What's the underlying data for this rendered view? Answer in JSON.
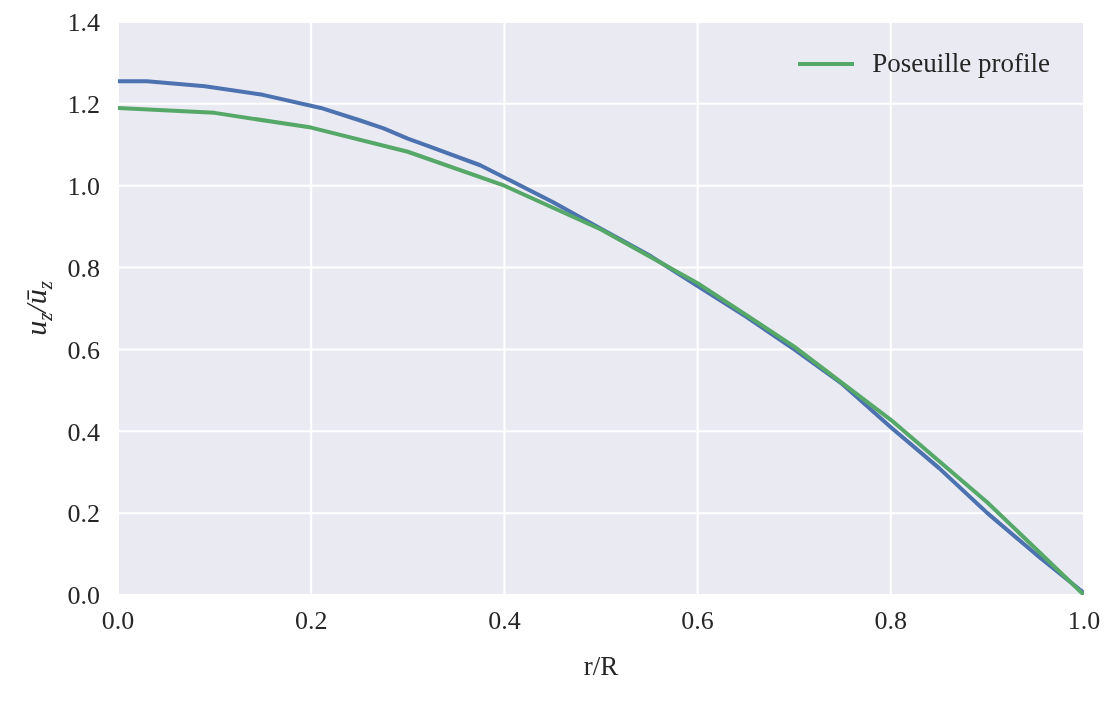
{
  "chart_data": {
    "type": "line",
    "xlabel": "r/R",
    "ylabel": "u$_{z}$/ū$_{z}$",
    "xlim": [
      0,
      1
    ],
    "xticks": [
      {
        "value": 0,
        "label": "0.0"
      },
      0.2,
      0.4,
      0.6,
      0.8,
      {
        "value": 1,
        "label": "1.0"
      }
    ],
    "ylim": [
      0,
      1.4
    ],
    "yticks": [
      {
        "value": 0,
        "label": "0.0"
      },
      0.2,
      0.4,
      0.6,
      0.8,
      {
        "value": 1,
        "label": "1.0"
      },
      1.2,
      1.4
    ],
    "grid": true,
    "legend": "top right",
    "marker": "none",
    "line_style": "solid",
    "series": [
      {
        "color": "#4c72b0",
        "x": [
          0,
          0.03,
          0.09,
          0.15,
          0.21,
          0.25,
          0.275,
          0.3,
          0.32,
          0.375,
          0.4,
          0.45,
          0.5,
          0.55,
          0.6,
          0.65,
          0.7,
          0.75,
          0.8,
          0.85,
          0.9,
          0.95,
          1.0
        ],
        "values": [
          1.255,
          1.255,
          1.243,
          1.222,
          1.19,
          1.16,
          1.14,
          1.115,
          1.098,
          1.05,
          1.02,
          0.96,
          0.895,
          0.83,
          0.755,
          0.68,
          0.6,
          0.515,
          0.41,
          0.31,
          0.2,
          0.1,
          0.005
        ]
      },
      {
        "name": "Poseuille profile",
        "color": "#55a868",
        "x": [
          0,
          0.1,
          0.2,
          0.3,
          0.4,
          0.5,
          0.6,
          0.7,
          0.8,
          0.9,
          1.0
        ],
        "values": [
          1.19,
          1.178,
          1.142,
          1.083,
          1.0,
          0.893,
          0.762,
          0.607,
          0.428,
          0.226,
          0
        ]
      }
    ]
  }
}
